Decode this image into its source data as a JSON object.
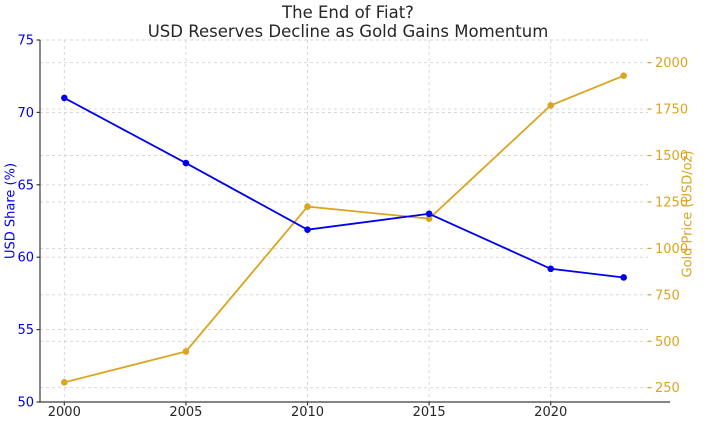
{
  "title": {
    "line1": "The End of Fiat?",
    "line2": "USD Reserves Decline as Gold Gains Momentum"
  },
  "chart_data": {
    "type": "line",
    "title": "The End of Fiat?\nUSD Reserves Decline as Gold Gains Momentum",
    "x": [
      2000,
      2005,
      2010,
      2015,
      2020,
      2023
    ],
    "series": [
      {
        "name": "USD Share (%)",
        "axis": "left",
        "color": "#0000ee",
        "marker": "circle",
        "values": [
          71.0,
          66.5,
          61.9,
          63.0,
          59.2,
          58.6
        ]
      },
      {
        "name": "Gold Price (USD/oz)",
        "axis": "right",
        "color": "#daa520",
        "marker": "circle",
        "values": [
          279,
          445,
          1225,
          1160,
          1770,
          1930
        ]
      }
    ],
    "xlabel": "",
    "ylabel_left": "USD Share (%)",
    "ylabel_right": "Gold Price (USD/oz)",
    "xlim": [
      1999.0,
      2024.0
    ],
    "ylim_left": [
      50,
      75
    ],
    "ylim_right": [
      173,
      2122
    ],
    "xticks": [
      2000,
      2005,
      2010,
      2015,
      2020
    ],
    "yticks_left": [
      50,
      55,
      60,
      65,
      70,
      75
    ],
    "yticks_right": [
      250,
      500,
      750,
      1000,
      1250,
      1500,
      1750,
      2000
    ],
    "grid": {
      "visible": true,
      "style": "dashed",
      "color": "#d3d3d3",
      "axes": "both"
    },
    "legend": "none"
  }
}
